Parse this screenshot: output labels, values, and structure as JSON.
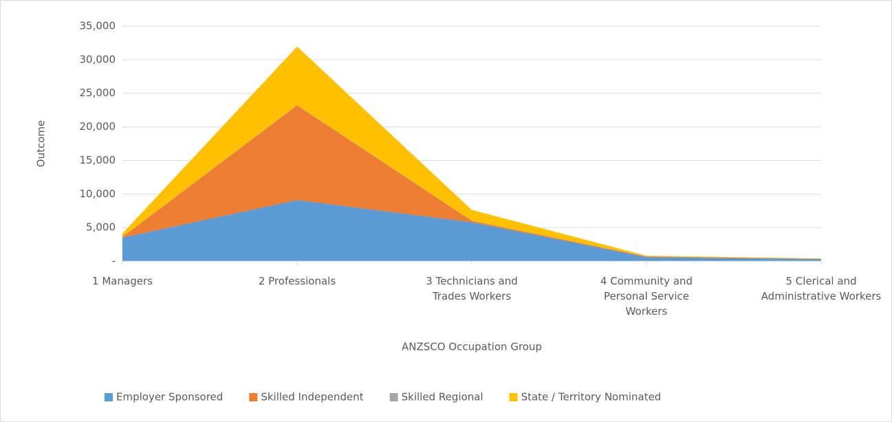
{
  "chart_data": {
    "type": "stacked_area",
    "xlabel": "ANZSCO Occupation Group",
    "ylabel": "Outcome",
    "categories": [
      "1 Managers",
      "2 Professionals",
      "3 Technicians and Trades Workers",
      "4 Community and Personal Service Workers",
      "5 Clerical and Administrative Workers"
    ],
    "series": [
      {
        "name": "Employer Sponsored",
        "color": "#5b9bd5",
        "values": [
          3500,
          9100,
          5800,
          600,
          300
        ]
      },
      {
        "name": "Skilled Independent",
        "color": "#ed7d31",
        "values": [
          100,
          14100,
          200,
          100,
          50
        ]
      },
      {
        "name": "Skilled Regional",
        "color": "#a5a5a5",
        "values": [
          20,
          50,
          30,
          10,
          5
        ]
      },
      {
        "name": "State / Territory Nominated",
        "color": "#ffc000",
        "values": [
          500,
          8700,
          1600,
          100,
          50
        ]
      }
    ],
    "ylim": [
      0,
      35000
    ],
    "yticks": [
      {
        "value": 0,
        "label": "-"
      },
      {
        "value": 5000,
        "label": "5,000"
      },
      {
        "value": 10000,
        "label": "10,000"
      },
      {
        "value": 15000,
        "label": "15,000"
      },
      {
        "value": 20000,
        "label": "20,000"
      },
      {
        "value": 25000,
        "label": "25,000"
      },
      {
        "value": 30000,
        "label": "30,000"
      },
      {
        "value": 35000,
        "label": "35,000"
      }
    ],
    "grid": true,
    "legend": "bottom"
  }
}
